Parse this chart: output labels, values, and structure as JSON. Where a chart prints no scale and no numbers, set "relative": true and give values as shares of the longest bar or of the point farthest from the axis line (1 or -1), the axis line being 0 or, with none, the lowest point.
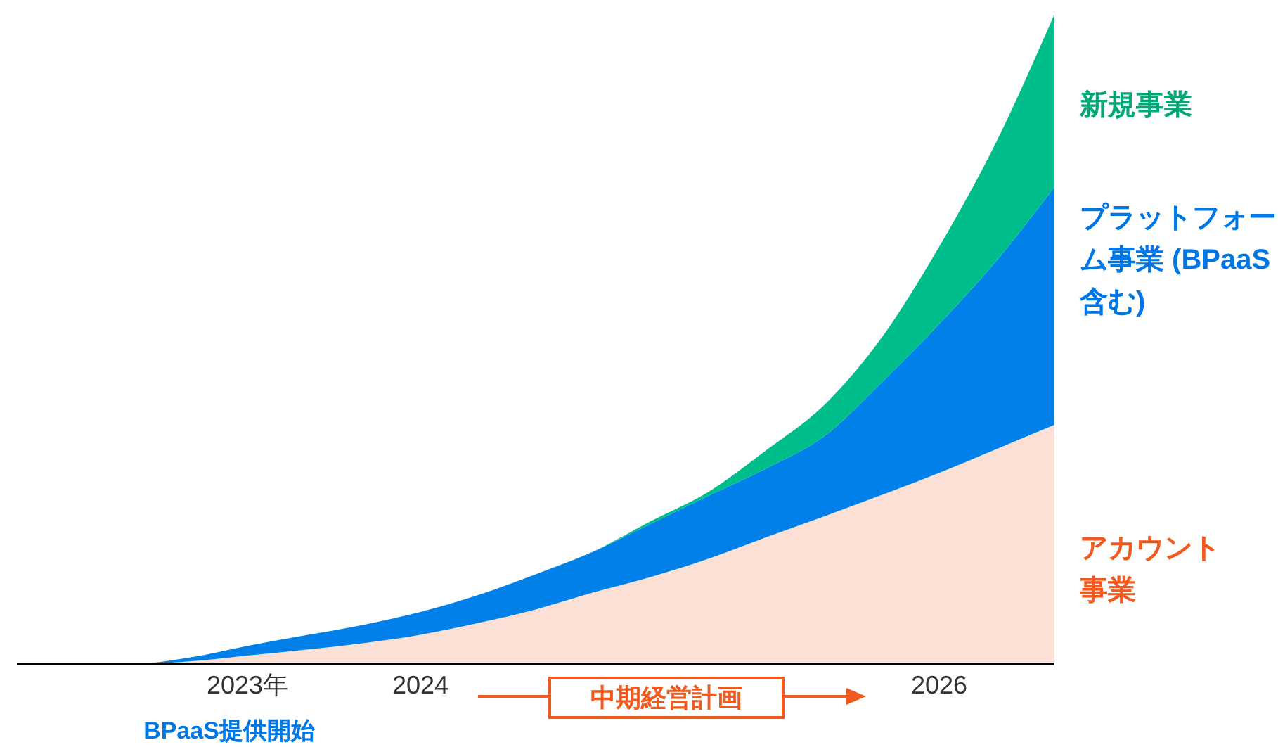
{
  "chart_data": {
    "type": "area",
    "stacked": true,
    "relative": true,
    "categories": [
      null,
      null,
      null,
      null,
      "2023年",
      null,
      null,
      "2024",
      null,
      null,
      null,
      null,
      null,
      null,
      null,
      null,
      "2026",
      null,
      null
    ],
    "series": [
      {
        "name": "アカウント事業",
        "color": "#fde0d5",
        "values": [
          0,
          0,
          0,
          0.004,
          0.013,
          0.022,
          0.032,
          0.045,
          0.063,
          0.084,
          0.11,
          0.134,
          0.162,
          0.195,
          0.227,
          0.26,
          0.294,
          0.331,
          0.368
        ]
      },
      {
        "name": "プラットフォーム事業 (BPaaS含む)",
        "color": "#0080e8",
        "values": [
          0,
          0,
          0,
          0.006,
          0.015,
          0.022,
          0.028,
          0.035,
          0.043,
          0.054,
          0.063,
          0.082,
          0.097,
          0.106,
          0.123,
          0.173,
          0.229,
          0.29,
          0.366
        ]
      },
      {
        "name": "新規事業",
        "color": "#00be8c",
        "values": [
          0,
          0,
          0,
          0,
          0,
          0,
          0,
          0,
          0,
          0,
          0,
          0.004,
          0.006,
          0.028,
          0.048,
          0.069,
          0.119,
          0.184,
          0.266
        ]
      }
    ],
    "annotations": [
      "BPaaS提供開始",
      "中期経営計画"
    ]
  }
}
